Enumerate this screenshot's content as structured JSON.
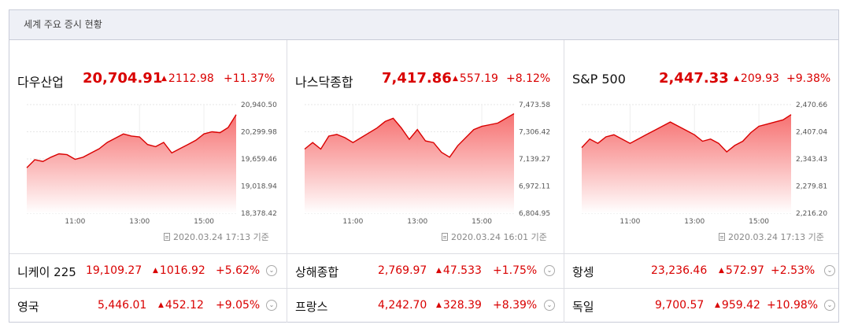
{
  "header": {
    "title": "세계 주요 증시 현황"
  },
  "colors": {
    "up": "#d90000",
    "fill_top": "#f66a6a",
    "fill_bottom": "#ffffff",
    "border": "#c9ccd8"
  },
  "panels": [
    {
      "name": "다우산업",
      "value": "20,704.91",
      "change": "2112.98",
      "pct": "+11.37%",
      "stamp": "2020.03.24 17:13 기준"
    },
    {
      "name": "나스닥종합",
      "value": "7,417.86",
      "change": "557.19",
      "pct": "+8.12%",
      "stamp": "2020.03.24 16:01 기준"
    },
    {
      "name": "S&P 500",
      "value": "2,447.33",
      "change": "209.93",
      "pct": "+9.38%",
      "stamp": "2020.03.24 17:13 기준"
    }
  ],
  "chart_data": [
    {
      "type": "area",
      "ylim": [
        18378.42,
        20940.5
      ],
      "y_ticks": [
        "20,940.50",
        "20,299.98",
        "19,659.46",
        "19,018.94",
        "18,378.42"
      ],
      "x_ticks": [
        "11:00",
        "13:00",
        "15:00"
      ],
      "x_tick_hours": [
        11,
        13,
        15
      ],
      "x_range": [
        9.5,
        16.0
      ],
      "x": [
        9.5,
        9.75,
        10.0,
        10.25,
        10.5,
        10.75,
        11.0,
        11.25,
        11.5,
        11.75,
        12.0,
        12.25,
        12.5,
        12.75,
        13.0,
        13.25,
        13.5,
        13.75,
        14.0,
        14.25,
        14.5,
        14.75,
        15.0,
        15.25,
        15.5,
        15.75,
        16.0
      ],
      "values": [
        19450,
        19640,
        19600,
        19700,
        19780,
        19760,
        19650,
        19700,
        19800,
        19900,
        20050,
        20150,
        20250,
        20200,
        20180,
        20000,
        19950,
        20050,
        19800,
        19900,
        20000,
        20100,
        20250,
        20300,
        20280,
        20400,
        20704.91
      ]
    },
    {
      "type": "area",
      "ylim": [
        6804.95,
        7473.58
      ],
      "y_ticks": [
        "7,473.58",
        "7,306.42",
        "7,139.27",
        "6,972.11",
        "6,804.95"
      ],
      "x_ticks": [
        "11:00",
        "13:00",
        "15:00"
      ],
      "x_tick_hours": [
        11,
        13,
        15
      ],
      "x_range": [
        9.5,
        16.0
      ],
      "x": [
        9.5,
        9.75,
        10.0,
        10.25,
        10.5,
        10.75,
        11.0,
        11.25,
        11.5,
        11.75,
        12.0,
        12.25,
        12.5,
        12.75,
        13.0,
        13.25,
        13.5,
        13.75,
        14.0,
        14.25,
        14.5,
        14.75,
        15.0,
        15.25,
        15.5,
        15.75,
        16.0
      ],
      "values": [
        7200,
        7240,
        7200,
        7280,
        7290,
        7270,
        7240,
        7270,
        7300,
        7330,
        7370,
        7390,
        7330,
        7260,
        7320,
        7250,
        7240,
        7180,
        7150,
        7220,
        7270,
        7320,
        7340,
        7350,
        7360,
        7390,
        7417.86
      ]
    },
    {
      "type": "area",
      "ylim": [
        2216.2,
        2470.66
      ],
      "y_ticks": [
        "2,470.66",
        "2,407.04",
        "2,343.43",
        "2,279.81",
        "2,216.20"
      ],
      "x_ticks": [
        "11:00",
        "13:00",
        "15:00"
      ],
      "x_tick_hours": [
        11,
        13,
        15
      ],
      "x_range": [
        9.5,
        16.0
      ],
      "x": [
        9.5,
        9.75,
        10.0,
        10.25,
        10.5,
        10.75,
        11.0,
        11.25,
        11.5,
        11.75,
        12.0,
        12.25,
        12.5,
        12.75,
        13.0,
        13.25,
        13.5,
        13.75,
        14.0,
        14.25,
        14.5,
        14.75,
        15.0,
        15.25,
        15.5,
        15.75,
        16.0
      ],
      "values": [
        2370,
        2390,
        2380,
        2395,
        2400,
        2390,
        2380,
        2390,
        2400,
        2410,
        2420,
        2430,
        2420,
        2410,
        2400,
        2385,
        2390,
        2380,
        2360,
        2375,
        2385,
        2405,
        2420,
        2425,
        2430,
        2435,
        2447.33
      ]
    }
  ],
  "rows": [
    [
      {
        "name": "니케이 225",
        "value": "19,109.27",
        "change": "1016.92",
        "pct": "+5.62%"
      },
      {
        "name": "상해종합",
        "value": "2,769.97",
        "change": "47.533",
        "pct": "+1.75%"
      },
      {
        "name": "항셍",
        "value": "23,236.46",
        "change": "572.97",
        "pct": "+2.53%"
      }
    ],
    [
      {
        "name": "영국",
        "value": "5,446.01",
        "change": "452.12",
        "pct": "+9.05%"
      },
      {
        "name": "프랑스",
        "value": "4,242.70",
        "change": "328.39",
        "pct": "+8.39%"
      },
      {
        "name": "독일",
        "value": "9,700.57",
        "change": "959.42",
        "pct": "+10.98%"
      }
    ]
  ],
  "icons": {
    "up": "up-triangle-icon",
    "expand": "chevron-down-icon",
    "stamp": "document-icon"
  }
}
